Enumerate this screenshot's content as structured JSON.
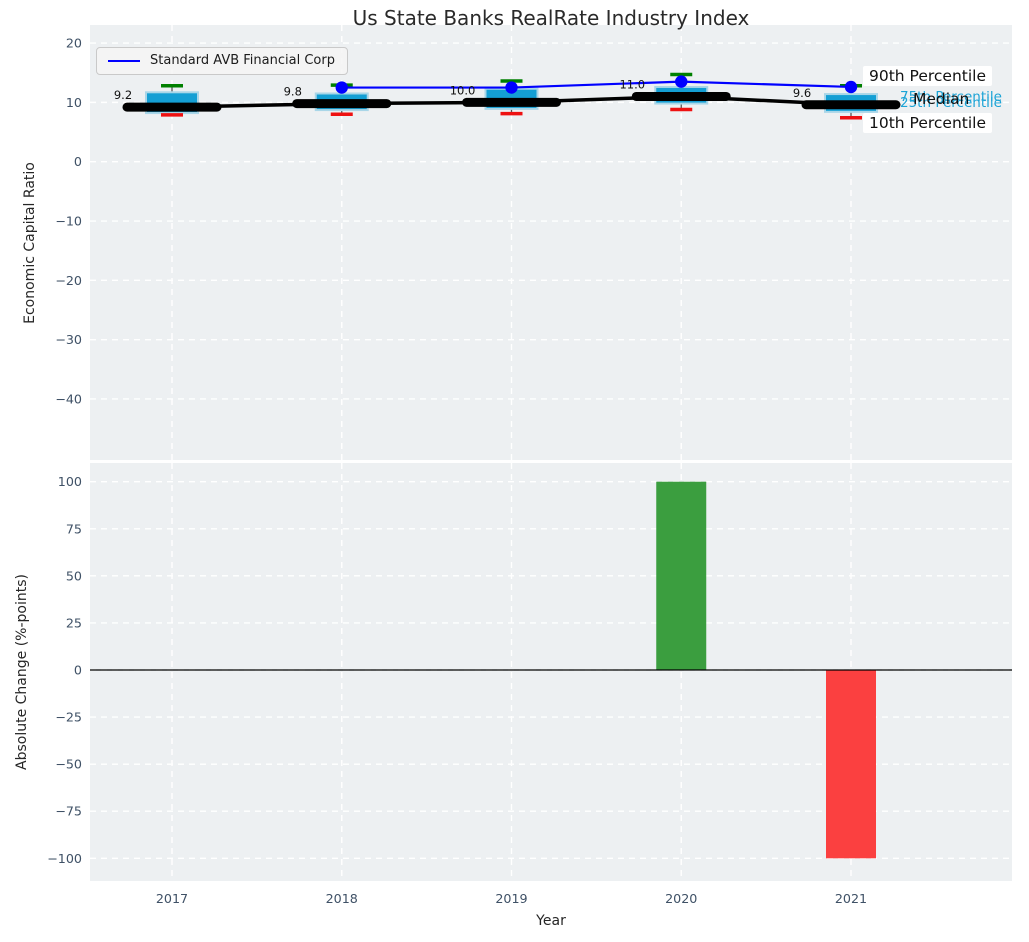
{
  "title": "Us State Banks RealRate Industry Index",
  "legend": {
    "label": "Standard AVB Financial Corp"
  },
  "right_labels": {
    "p90": "90th Percentile",
    "p75": "75th Percentile",
    "median": "Median",
    "p25": "25th Percentile",
    "p10": "10th Percentile"
  },
  "colors": {
    "axes_bg": "#edf0f2",
    "grid": "#ffffff",
    "box_fill": "#149fd4",
    "box_edge": "#a9d6e8",
    "whisker_line": "#555555",
    "cap_high": "#008000",
    "cap_low": "#ee1111",
    "median_line": "#000000",
    "company_line": "#0000ff",
    "bar_positive": "#3b9e3f",
    "bar_negative": "#fb4040",
    "tick_label": "#3f5166",
    "zero_line": "#000000"
  },
  "chart_data": [
    {
      "type": "boxplot",
      "title": "Us State Banks RealRate Industry Index",
      "ylabel": "Economic Capital Ratio",
      "x": [
        "2017",
        "2018",
        "2019",
        "2020",
        "2021"
      ],
      "ylim": [
        -50.3,
        23.1
      ],
      "ytick_values": [
        20,
        10,
        0,
        -10,
        -20,
        -30,
        -40
      ],
      "ytick_labels": [
        "20",
        "10",
        "0",
        "−10",
        "−20",
        "−30",
        "−40"
      ],
      "boxes": {
        "whisker_high": [
          12.8,
          12.9,
          13.6,
          14.7,
          12.8
        ],
        "q3": [
          11.7,
          11.5,
          12.3,
          12.6,
          11.4
        ],
        "median": [
          9.2,
          9.8,
          10.0,
          11.0,
          9.6
        ],
        "q1": [
          8.2,
          8.7,
          8.9,
          9.8,
          8.4
        ],
        "whisker_low": [
          7.9,
          8.0,
          8.1,
          8.8,
          7.4
        ]
      },
      "median_labels": [
        "9.2",
        "9.8",
        "10.0",
        "11.0",
        "9.6"
      ],
      "series": [
        {
          "name": "Standard AVB Financial Corp",
          "values": [
            null,
            12.5,
            12.5,
            13.5,
            12.6
          ]
        }
      ],
      "legend_position": "upper left",
      "grid": "white-dashed"
    },
    {
      "type": "bar",
      "ylabel": "Absolute Change (%-points)",
      "xlabel": "Year",
      "categories": [
        "2017",
        "2018",
        "2019",
        "2020",
        "2021"
      ],
      "values": [
        0,
        0,
        0,
        100,
        -100
      ],
      "ylim": [
        -112,
        110
      ],
      "ytick_values": [
        100,
        75,
        50,
        25,
        0,
        -25,
        -50,
        -75,
        -100
      ],
      "ytick_labels": [
        "100",
        "75",
        "50",
        "25",
        "0",
        "−25",
        "−50",
        "−75",
        "−100"
      ],
      "grid": "white-dashed"
    }
  ]
}
